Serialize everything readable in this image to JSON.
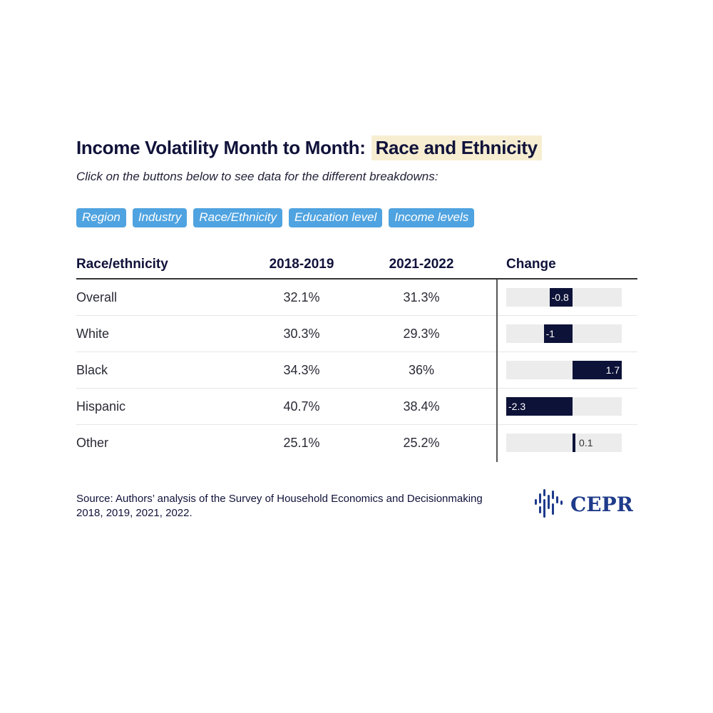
{
  "header": {
    "title": "Income Volatility Month to Month:",
    "highlight": "Race and Ethnicity",
    "subtitle": "Click on the buttons below to see data for the different breakdowns:"
  },
  "buttons": [
    "Region",
    "Industry",
    "Race/Ethnicity",
    "Education level",
    "Income levels"
  ],
  "colors": {
    "button": "#4fa3e0",
    "bar": "#0d1238",
    "track": "#ececec",
    "highlight": "#f7eed2",
    "logo": "#1e3a8a"
  },
  "chart_data": {
    "type": "table",
    "columns": [
      "Race/ethnicity",
      "2018-2019",
      "2021-2022",
      "Change"
    ],
    "rows": [
      {
        "label": "Overall",
        "y2018": "32.1%",
        "y2021": "31.3%",
        "change": -0.8,
        "change_label": "-0.8"
      },
      {
        "label": "White",
        "y2018": "30.3%",
        "y2021": "29.3%",
        "change": -1,
        "change_label": "-1"
      },
      {
        "label": "Black",
        "y2018": "34.3%",
        "y2021": "36%",
        "change": 1.7,
        "change_label": "1.7"
      },
      {
        "label": "Hispanic",
        "y2018": "40.7%",
        "y2021": "38.4%",
        "change": -2.3,
        "change_label": "-2.3"
      },
      {
        "label": "Other",
        "y2018": "25.1%",
        "y2021": "25.2%",
        "change": 0.1,
        "change_label": "0.1"
      }
    ],
    "change_range": [
      -2.3,
      1.7
    ]
  },
  "footer": {
    "source_line1": "Source: Authors’ analysis of the Survey of Household Economics and Decisionmaking",
    "source_line2": "2018, 2019, 2021, 2022.",
    "logo_text": "CEPR"
  }
}
